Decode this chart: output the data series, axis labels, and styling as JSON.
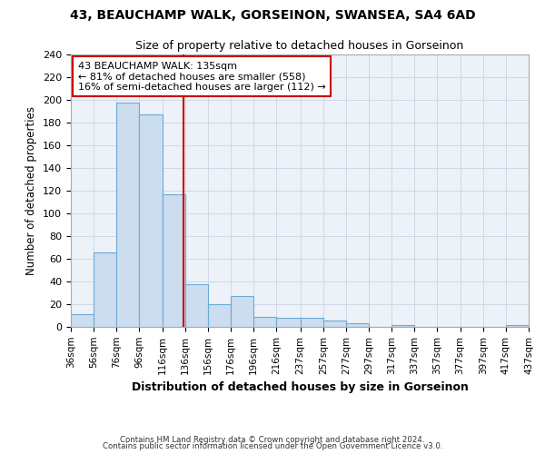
{
  "title1": "43, BEAUCHAMP WALK, GORSEINON, SWANSEA, SA4 6AD",
  "title2": "Size of property relative to detached houses in Gorseinon",
  "xlabel": "Distribution of detached houses by size in Gorseinon",
  "ylabel": "Number of detached properties",
  "bar_color": "#ccddef",
  "bar_edge_color": "#6aaad4",
  "vline_x": 135,
  "vline_color": "#cc0000",
  "annotation_lines": [
    "43 BEAUCHAMP WALK: 135sqm",
    "← 81% of detached houses are smaller (558)",
    "16% of semi-detached houses are larger (112) →"
  ],
  "annotation_box_color": "#cc0000",
  "bins": [
    36,
    56,
    76,
    96,
    116,
    136,
    156,
    176,
    196,
    216,
    237,
    257,
    277,
    297,
    317,
    337,
    357,
    377,
    397,
    417,
    437
  ],
  "counts": [
    11,
    66,
    198,
    187,
    117,
    38,
    20,
    27,
    9,
    8,
    8,
    6,
    3,
    0,
    2,
    0,
    0,
    0,
    0,
    2
  ],
  "ylim": [
    0,
    240
  ],
  "yticks": [
    0,
    20,
    40,
    60,
    80,
    100,
    120,
    140,
    160,
    180,
    200,
    220,
    240
  ],
  "footer1": "Contains HM Land Registry data © Crown copyright and database right 2024.",
  "footer2": "Contains public sector information licensed under the Open Government Licence v3.0.",
  "bg_color": "#ffffff",
  "grid_color": "#d0d8e8",
  "axis_bg_color": "#edf2f9"
}
